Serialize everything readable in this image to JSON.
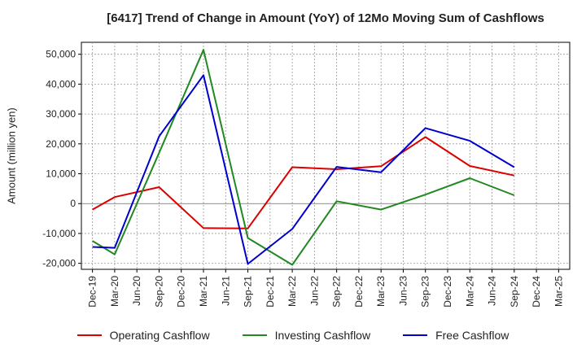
{
  "chart_data": {
    "type": "line",
    "title": "[6417]  Trend of Change in Amount (YoY) of 12Mo Moving Sum of Cashflows",
    "xlabel": "",
    "ylabel": "Amount (million yen)",
    "ylim": [
      -22000,
      54000
    ],
    "yticks": [
      -20000,
      -10000,
      0,
      10000,
      20000,
      30000,
      40000,
      50000
    ],
    "ytick_labels": [
      "-20,000",
      "-10,000",
      "0",
      "10,000",
      "20,000",
      "30,000",
      "40,000",
      "50,000"
    ],
    "categories": [
      "Dec-19",
      "Mar-20",
      "Jun-20",
      "Sep-20",
      "Dec-20",
      "Mar-21",
      "Jun-21",
      "Sep-21",
      "Dec-21",
      "Mar-22",
      "Jun-22",
      "Sep-22",
      "Dec-22",
      "Mar-23",
      "Jun-23",
      "Sep-23",
      "Dec-23",
      "Mar-24",
      "Jun-24",
      "Sep-24",
      "Dec-24",
      "Mar-25"
    ],
    "grid": true,
    "legend_position": "bottom",
    "series": [
      {
        "name": "Operating Cashflow",
        "color": "#dd0000",
        "values": [
          -2000,
          2200,
          null,
          5500,
          null,
          -8200,
          null,
          -8300,
          null,
          12200,
          null,
          11500,
          null,
          12500,
          null,
          22300,
          null,
          12600,
          null,
          9400,
          null,
          null
        ]
      },
      {
        "name": "Investing Cashflow",
        "color": "#228822",
        "values": [
          -12500,
          -17000,
          null,
          17000,
          null,
          51500,
          null,
          -11500,
          null,
          -20500,
          null,
          800,
          null,
          -2000,
          null,
          3000,
          null,
          8500,
          null,
          2800,
          null,
          null
        ]
      },
      {
        "name": "Free Cashflow",
        "color": "#0000cc",
        "values": [
          -14500,
          -14800,
          null,
          22500,
          null,
          43000,
          null,
          -20200,
          null,
          -8500,
          null,
          12300,
          null,
          10500,
          null,
          25300,
          null,
          21000,
          null,
          12200,
          null,
          null
        ]
      }
    ]
  }
}
